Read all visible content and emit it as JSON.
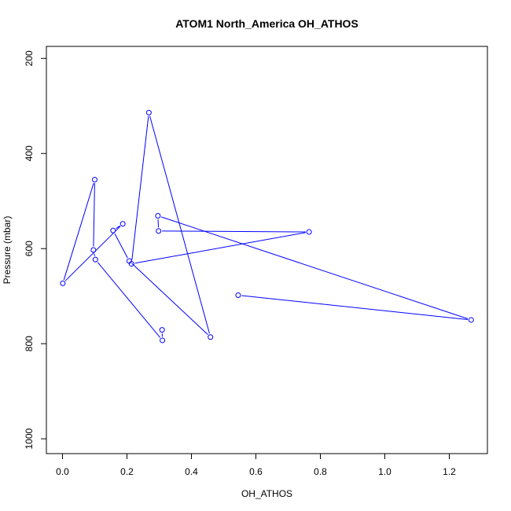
{
  "chart_data": {
    "type": "line",
    "title": "ATOM1 North_America OH_ATHOS",
    "xlabel": "OH_ATHOS",
    "ylabel": "Pressure (mbar)",
    "xlim": [
      0.0,
      1.27
    ],
    "ylim": [
      1000,
      200
    ],
    "y_axis_inverted": true,
    "x_ticks": [
      "0.0",
      "0.2",
      "0.4",
      "0.6",
      "0.8",
      "1.0",
      "1.2"
    ],
    "y_ticks": [
      "200",
      "400",
      "600",
      "800",
      "1000"
    ],
    "grid": false,
    "legend": "none",
    "series": [
      {
        "color": "#0000ff",
        "marker": "open-circle",
        "x": [
          0.545,
          1.268,
          0.296,
          0.298,
          0.765,
          0.214,
          0.268,
          0.459,
          0.207,
          0.157,
          0.187,
          0.001,
          0.1,
          0.096,
          0.102,
          0.31,
          0.309
        ],
        "y": [
          698,
          750,
          531,
          563,
          565,
          632,
          314,
          786,
          626,
          562,
          548,
          673,
          455,
          603,
          623,
          793,
          771
        ]
      }
    ]
  }
}
